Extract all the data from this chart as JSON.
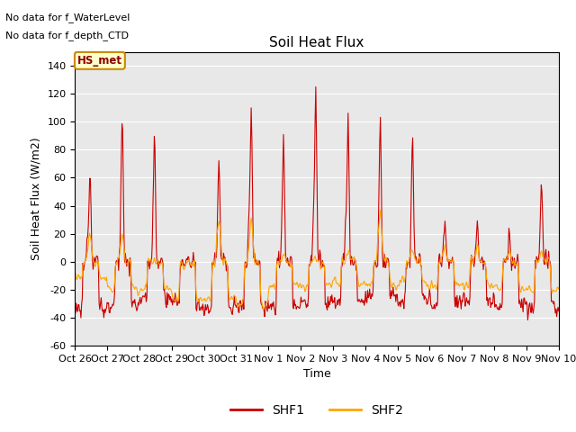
{
  "title": "Soil Heat Flux",
  "ylabel": "Soil Heat Flux (W/m2)",
  "xlabel": "Time",
  "ylim": [
    -60,
    150
  ],
  "yticks": [
    -60,
    -40,
    -20,
    0,
    20,
    40,
    60,
    80,
    100,
    120,
    140
  ],
  "x_tick_labels": [
    "Oct 26",
    "Oct 27",
    "Oct 28",
    "Oct 29",
    "Oct 30",
    "Oct 31",
    "Nov 1",
    "Nov 2",
    "Nov 3",
    "Nov 4",
    "Nov 5",
    "Nov 6",
    "Nov 7",
    "Nov 8",
    "Nov 9",
    "Nov 10"
  ],
  "color_shf1": "#CC0000",
  "color_shf2": "#FFA500",
  "legend_label1": "SHF1",
  "legend_label2": "SHF2",
  "annotation1": "No data for f_WaterLevel",
  "annotation2": "No data for f_depth_CTD",
  "legend_box_label": "HS_met",
  "bg_color": "#E8E8E8",
  "grid_color": "white",
  "title_fontsize": 11,
  "axis_fontsize": 9,
  "tick_fontsize": 8,
  "figsize": [
    6.4,
    4.8
  ],
  "dpi": 100,
  "peak_shf1": [
    71,
    119,
    105,
    0,
    75,
    121,
    100,
    130,
    110,
    115,
    99,
    28,
    30,
    30,
    60,
    0
  ],
  "peak_shf2": [
    22,
    22,
    0,
    0,
    35,
    35,
    8,
    5,
    5,
    40,
    10,
    13,
    10,
    8,
    8,
    0
  ],
  "trough_shf1": [
    -48,
    -45,
    -38,
    -43,
    -48,
    -46,
    -47,
    -42,
    -40,
    -35,
    -38,
    -42,
    -40,
    -46,
    -48,
    -20
  ],
  "trough_shf2": [
    -15,
    -28,
    -28,
    -38,
    -38,
    -43,
    -25,
    -25,
    -22,
    -22,
    -22,
    -25,
    -25,
    -28,
    -28,
    -15
  ]
}
